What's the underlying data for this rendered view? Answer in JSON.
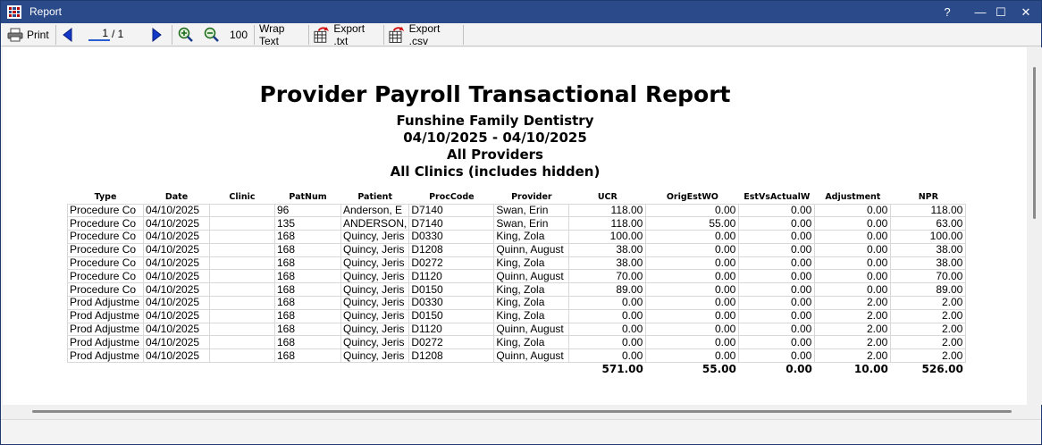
{
  "window": {
    "title": "Report",
    "help": "?",
    "minimize": "—",
    "maximize": "☐",
    "close": "✕"
  },
  "toolbar": {
    "print_label": "Print",
    "page_current": "1",
    "page_total": "/ 1",
    "zoom_level": "100",
    "wrap_text_label": "Wrap Text",
    "export_txt_label": "Export .txt",
    "export_csv_label": "Export .csv"
  },
  "report": {
    "title": "Provider Payroll Transactional Report",
    "practice": "Funshine Family Dentistry",
    "date_range": "04/10/2025 - 04/10/2025",
    "providers": "All Providers",
    "clinics": "All Clinics (includes hidden)",
    "columns": [
      "Type",
      "Date",
      "Clinic",
      "PatNum",
      "Patient",
      "ProcCode",
      "Provider",
      "UCR",
      "OrigEstWO",
      "EstVsActualW",
      "Adjustment",
      "NPR"
    ],
    "rows": [
      [
        "Procedure Co",
        "04/10/2025",
        "",
        "96",
        "Anderson, E",
        "D7140",
        "Swan, Erin",
        "118.00",
        "0.00",
        "0.00",
        "0.00",
        "118.00"
      ],
      [
        "Procedure Co",
        "04/10/2025",
        "",
        "135",
        "ANDERSON,",
        "D7140",
        "Swan, Erin",
        "118.00",
        "55.00",
        "0.00",
        "0.00",
        "63.00"
      ],
      [
        "Procedure Co",
        "04/10/2025",
        "",
        "168",
        "Quincy, Jeris",
        "D0330",
        "King, Zola",
        "100.00",
        "0.00",
        "0.00",
        "0.00",
        "100.00"
      ],
      [
        "Procedure Co",
        "04/10/2025",
        "",
        "168",
        "Quincy, Jeris",
        "D1208",
        "Quinn, August",
        "38.00",
        "0.00",
        "0.00",
        "0.00",
        "38.00"
      ],
      [
        "Procedure Co",
        "04/10/2025",
        "",
        "168",
        "Quincy, Jeris",
        "D0272",
        "King, Zola",
        "38.00",
        "0.00",
        "0.00",
        "0.00",
        "38.00"
      ],
      [
        "Procedure Co",
        "04/10/2025",
        "",
        "168",
        "Quincy, Jeris",
        "D1120",
        "Quinn, August",
        "70.00",
        "0.00",
        "0.00",
        "0.00",
        "70.00"
      ],
      [
        "Procedure Co",
        "04/10/2025",
        "",
        "168",
        "Quincy, Jeris",
        "D0150",
        "King, Zola",
        "89.00",
        "0.00",
        "0.00",
        "0.00",
        "89.00"
      ],
      [
        "Prod Adjustme",
        "04/10/2025",
        "",
        "168",
        "Quincy, Jeris",
        "D0330",
        "King, Zola",
        "0.00",
        "0.00",
        "0.00",
        "2.00",
        "2.00"
      ],
      [
        "Prod Adjustme",
        "04/10/2025",
        "",
        "168",
        "Quincy, Jeris",
        "D0150",
        "King, Zola",
        "0.00",
        "0.00",
        "0.00",
        "2.00",
        "2.00"
      ],
      [
        "Prod Adjustme",
        "04/10/2025",
        "",
        "168",
        "Quincy, Jeris",
        "D1120",
        "Quinn, August",
        "0.00",
        "0.00",
        "0.00",
        "2.00",
        "2.00"
      ],
      [
        "Prod Adjustme",
        "04/10/2025",
        "",
        "168",
        "Quincy, Jeris",
        "D0272",
        "King, Zola",
        "0.00",
        "0.00",
        "0.00",
        "2.00",
        "2.00"
      ],
      [
        "Prod Adjustme",
        "04/10/2025",
        "",
        "168",
        "Quincy, Jeris",
        "D1208",
        "Quinn, August",
        "0.00",
        "0.00",
        "0.00",
        "2.00",
        "2.00"
      ]
    ],
    "totals": [
      "571.00",
      "55.00",
      "0.00",
      "10.00",
      "526.00"
    ]
  }
}
